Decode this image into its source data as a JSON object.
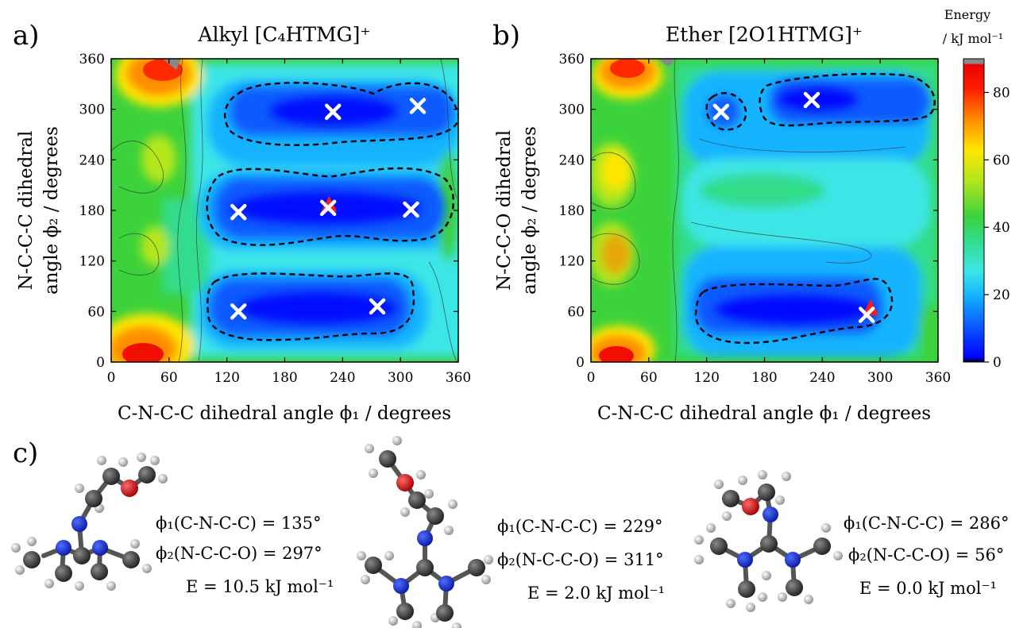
{
  "panels": [
    {
      "letter": "a)",
      "title": "Alkyl [C₄HTMG]⁺",
      "xlabel": "C-N-C-C dihedral angle  ϕ₁ / degrees",
      "ylabel_line1": "N-C-C-C dihedral",
      "ylabel_line2": "angle  ϕ₂ / degrees"
    },
    {
      "letter": "b)",
      "title": "Ether [2O1HTMG]⁺",
      "xlabel": "C-N-C-C dihedral angle  ϕ₁ / degrees",
      "ylabel_line1": "N-C-C-O dihedral",
      "ylabel_line2": "angle  ϕ₂ / degrees"
    }
  ],
  "colorbar": {
    "title_line1": "Energy",
    "title_line2": "/ kJ mol⁻¹",
    "ticks": [
      "0",
      "20",
      "40",
      "60",
      "80"
    ],
    "range": [
      0,
      90
    ],
    "colors": [
      "#000000",
      "#0000ff",
      "#0a5aff",
      "#14b4ff",
      "#3ce6e6",
      "#32dc8c",
      "#3cd23c",
      "#b4e61e",
      "#ffe600",
      "#ff8c00",
      "#ff1e00",
      "#ee0000",
      "#888888"
    ]
  },
  "chart_data": [
    {
      "type": "heatmap",
      "panel": "a",
      "title": "Alkyl [C₄HTMG]⁺",
      "xlabel": "C-N-C-C dihedral angle ϕ₁ / degrees",
      "ylabel": "N-C-C-C dihedral angle ϕ₂ / degrees",
      "xlim": [
        0,
        360
      ],
      "ylim": [
        0,
        360
      ],
      "xticks": [
        0,
        60,
        120,
        180,
        240,
        300,
        360
      ],
      "yticks": [
        0,
        60,
        120,
        180,
        240,
        300,
        360
      ],
      "colorbar_label": "Energy / kJ mol⁻¹",
      "zlim": [
        0,
        90
      ],
      "minima_x_markers": [
        {
          "phi1": 230,
          "phi2": 297
        },
        {
          "phi1": 318,
          "phi2": 304
        },
        {
          "phi1": 132,
          "phi2": 178
        },
        {
          "phi1": 225,
          "phi2": 183
        },
        {
          "phi1": 311,
          "phi2": 181
        },
        {
          "phi1": 132,
          "phi2": 60
        },
        {
          "phi1": 276,
          "phi2": 66
        }
      ],
      "global_minimum_triangle": {
        "phi1": 226,
        "phi2": 186
      },
      "low_energy_basins_dashed": [
        {
          "phi1": [
            115,
            360
          ],
          "phi2": [
            245,
            345
          ]
        },
        {
          "phi1": [
            100,
            350
          ],
          "phi2": [
            135,
            225
          ]
        },
        {
          "phi1": [
            100,
            310
          ],
          "phi2": [
            15,
            110
          ]
        }
      ]
    },
    {
      "type": "heatmap",
      "panel": "b",
      "title": "Ether [2O1HTMG]⁺",
      "xlabel": "C-N-C-C dihedral angle ϕ₁ / degrees",
      "ylabel": "N-C-C-O dihedral angle ϕ₂ / degrees",
      "xlim": [
        0,
        360
      ],
      "ylim": [
        0,
        360
      ],
      "xticks": [
        0,
        60,
        120,
        180,
        240,
        300,
        360
      ],
      "yticks": [
        0,
        60,
        120,
        180,
        240,
        300,
        360
      ],
      "colorbar_label": "Energy / kJ mol⁻¹",
      "zlim": [
        0,
        90
      ],
      "minima_x_markers": [
        {
          "phi1": 135,
          "phi2": 297
        },
        {
          "phi1": 229,
          "phi2": 311
        },
        {
          "phi1": 286,
          "phi2": 56
        }
      ],
      "global_minimum_triangle": {
        "phi1": 290,
        "phi2": 63
      },
      "low_energy_basins_dashed": [
        {
          "phi1": [
            120,
            155
          ],
          "phi2": [
            275,
            322
          ]
        },
        {
          "phi1": [
            170,
            360
          ],
          "phi2": [
            270,
            335
          ]
        },
        {
          "phi1": [
            113,
            320
          ],
          "phi2": [
            12,
            78
          ]
        }
      ]
    }
  ],
  "conformers_panel": {
    "letter": "c)",
    "conformers": [
      {
        "phi1": "ϕ₁(C-N-C-C) = 135°",
        "phi2": "ϕ₂(N-C-C-O) = 297°",
        "energy": "E = 10.5 kJ mol⁻¹"
      },
      {
        "phi1": "ϕ₁(C-N-C-C) = 229°",
        "phi2": "ϕ₂(N-C-C-O) = 311°",
        "energy": "E = 2.0 kJ mol⁻¹"
      },
      {
        "phi1": "ϕ₁(C-N-C-C) = 286°",
        "phi2": "ϕ₂(N-C-C-O) = 56°",
        "energy": "E = 0.0 kJ mol⁻¹"
      }
    ]
  }
}
